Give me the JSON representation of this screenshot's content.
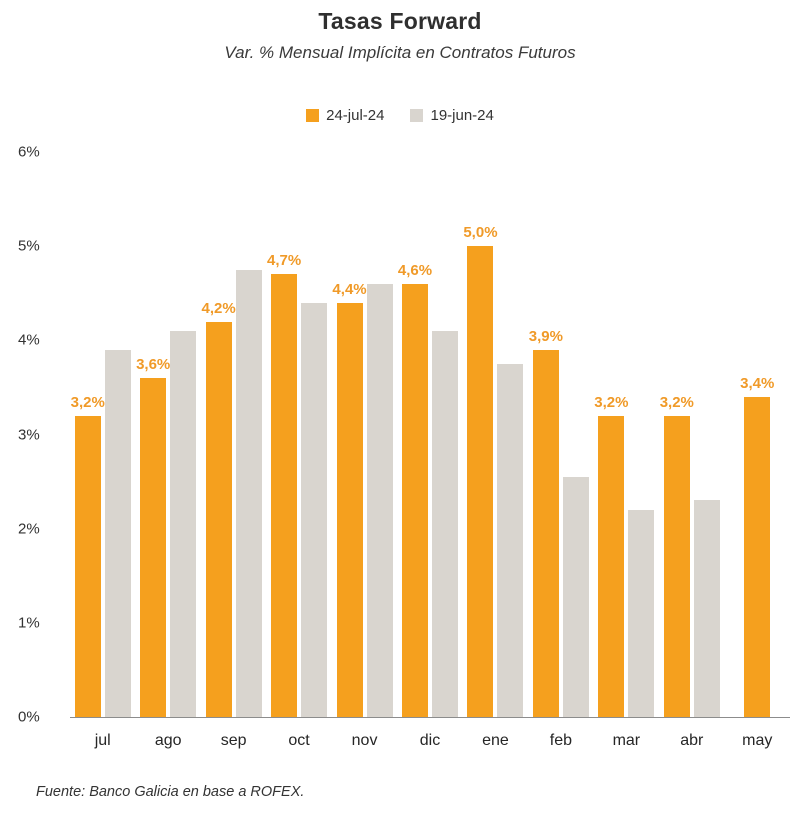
{
  "header": {
    "title": "Tasas Forward",
    "subtitle": "Var. % Mensual Implícita en Contratos Futuros"
  },
  "legend": [
    {
      "label": "24-jul-24",
      "color": "#F5A01E"
    },
    {
      "label": "19-jun-24",
      "color": "#D9D5CF"
    }
  ],
  "chart_data": {
    "type": "bar",
    "title": "Tasas Forward",
    "subtitle": "Var. % Mensual Implícita en Contratos Futuros",
    "categories": [
      "jul",
      "ago",
      "sep",
      "oct",
      "nov",
      "dic",
      "ene",
      "feb",
      "mar",
      "abr",
      "may"
    ],
    "series": [
      {
        "name": "24-jul-24",
        "color": "#F5A01E",
        "values": [
          3.2,
          3.6,
          4.2,
          4.7,
          4.4,
          4.6,
          5.0,
          3.9,
          3.2,
          3.2,
          3.4
        ],
        "labels": [
          "3,2%",
          "3,6%",
          "4,2%",
          "4,7%",
          "4,4%",
          "4,6%",
          "5,0%",
          "3,9%",
          "3,2%",
          "3,2%",
          "3,4%"
        ],
        "label_color": "#F09A28"
      },
      {
        "name": "19-jun-24",
        "color": "#D9D5CF",
        "values": [
          3.9,
          4.1,
          4.75,
          4.4,
          4.6,
          4.1,
          3.75,
          2.55,
          2.2,
          2.3,
          null
        ],
        "labels": null,
        "label_color": null
      }
    ],
    "ylim": [
      0,
      6
    ],
    "yticks": [
      "6%",
      "5%",
      "4%",
      "3%",
      "2%",
      "1%",
      "0%"
    ],
    "grid": false,
    "legend_position": "top"
  },
  "footer": {
    "source": "Fuente: Banco Galicia en base a ROFEX."
  }
}
